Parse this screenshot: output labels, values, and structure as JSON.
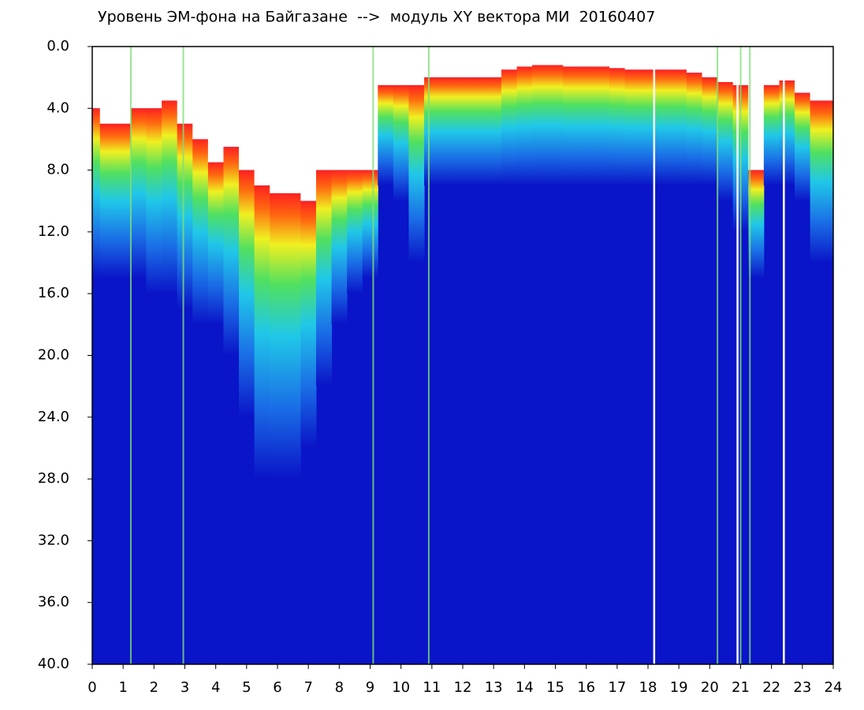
{
  "chart_data": {
    "type": "spectrogram",
    "title": "Уровень ЭМ-фона на Байгазане  -->  модуль XY вектора МИ  20160407",
    "xlim": [
      0,
      24
    ],
    "ylim": [
      40,
      0
    ],
    "xticks": [
      0,
      1,
      2,
      3,
      4,
      5,
      6,
      7,
      8,
      9,
      10,
      11,
      12,
      13,
      14,
      15,
      16,
      17,
      18,
      19,
      20,
      21,
      22,
      23,
      24
    ],
    "yticks": [
      {
        "value": 0,
        "label": "0.0"
      },
      {
        "value": 4,
        "label": "4.0"
      },
      {
        "value": 8,
        "label": "8.0"
      },
      {
        "value": 12,
        "label": "12.0"
      },
      {
        "value": 16,
        "label": "16.0"
      },
      {
        "value": 20,
        "label": "20.0"
      },
      {
        "value": 24,
        "label": "24.0"
      },
      {
        "value": 28,
        "label": "28.0"
      },
      {
        "value": 32,
        "label": "32.0"
      },
      {
        "value": 36,
        "label": "36.0"
      },
      {
        "value": 40,
        "label": "40.0"
      }
    ],
    "x": [
      0,
      0.5,
      1,
      1.5,
      2,
      2.5,
      3,
      3.5,
      4,
      4.5,
      5,
      5.5,
      6,
      6.5,
      7,
      7.5,
      8,
      8.5,
      9,
      9.5,
      10,
      10.5,
      11,
      11.5,
      12,
      12.5,
      13,
      13.5,
      14,
      14.5,
      15,
      15.5,
      16,
      16.5,
      17,
      17.5,
      18,
      18.5,
      19,
      19.5,
      20,
      20.5,
      21,
      21.5,
      22,
      22.5,
      23,
      23.5,
      24
    ],
    "signal_top": [
      4,
      5,
      5,
      4,
      4,
      3.5,
      5,
      6,
      7.5,
      6.5,
      8,
      9,
      9.5,
      9.5,
      10,
      8,
      8,
      8,
      8,
      2.5,
      2.5,
      2.5,
      2,
      2,
      2,
      2,
      2,
      1.5,
      1.3,
      1.2,
      1.2,
      1.3,
      1.3,
      1.3,
      1.4,
      1.5,
      1.5,
      1.5,
      1.5,
      1.7,
      2,
      2.3,
      2.5,
      8,
      2.5,
      2.2,
      3,
      3.5,
      3.5
    ],
    "signal_bottom": [
      15,
      15,
      15,
      15,
      16,
      16,
      17,
      18,
      18,
      20,
      24,
      28,
      28,
      28,
      26,
      22,
      18,
      16,
      15,
      9,
      10,
      14,
      9,
      9,
      9,
      9,
      9,
      9,
      9,
      9,
      9,
      9,
      9,
      9,
      9,
      9,
      9,
      9,
      9,
      9,
      9,
      10,
      12,
      15,
      9,
      9,
      10,
      14,
      14
    ],
    "green_lines": [
      1.25,
      2.95,
      9.1,
      10.9,
      20.25,
      21.0,
      21.3
    ],
    "white_lines": [
      18.2,
      20.9,
      22.4
    ],
    "background_color": "#0a14c8",
    "green_line_color": "#7fe07a",
    "white_line_color": "#ffffff"
  }
}
